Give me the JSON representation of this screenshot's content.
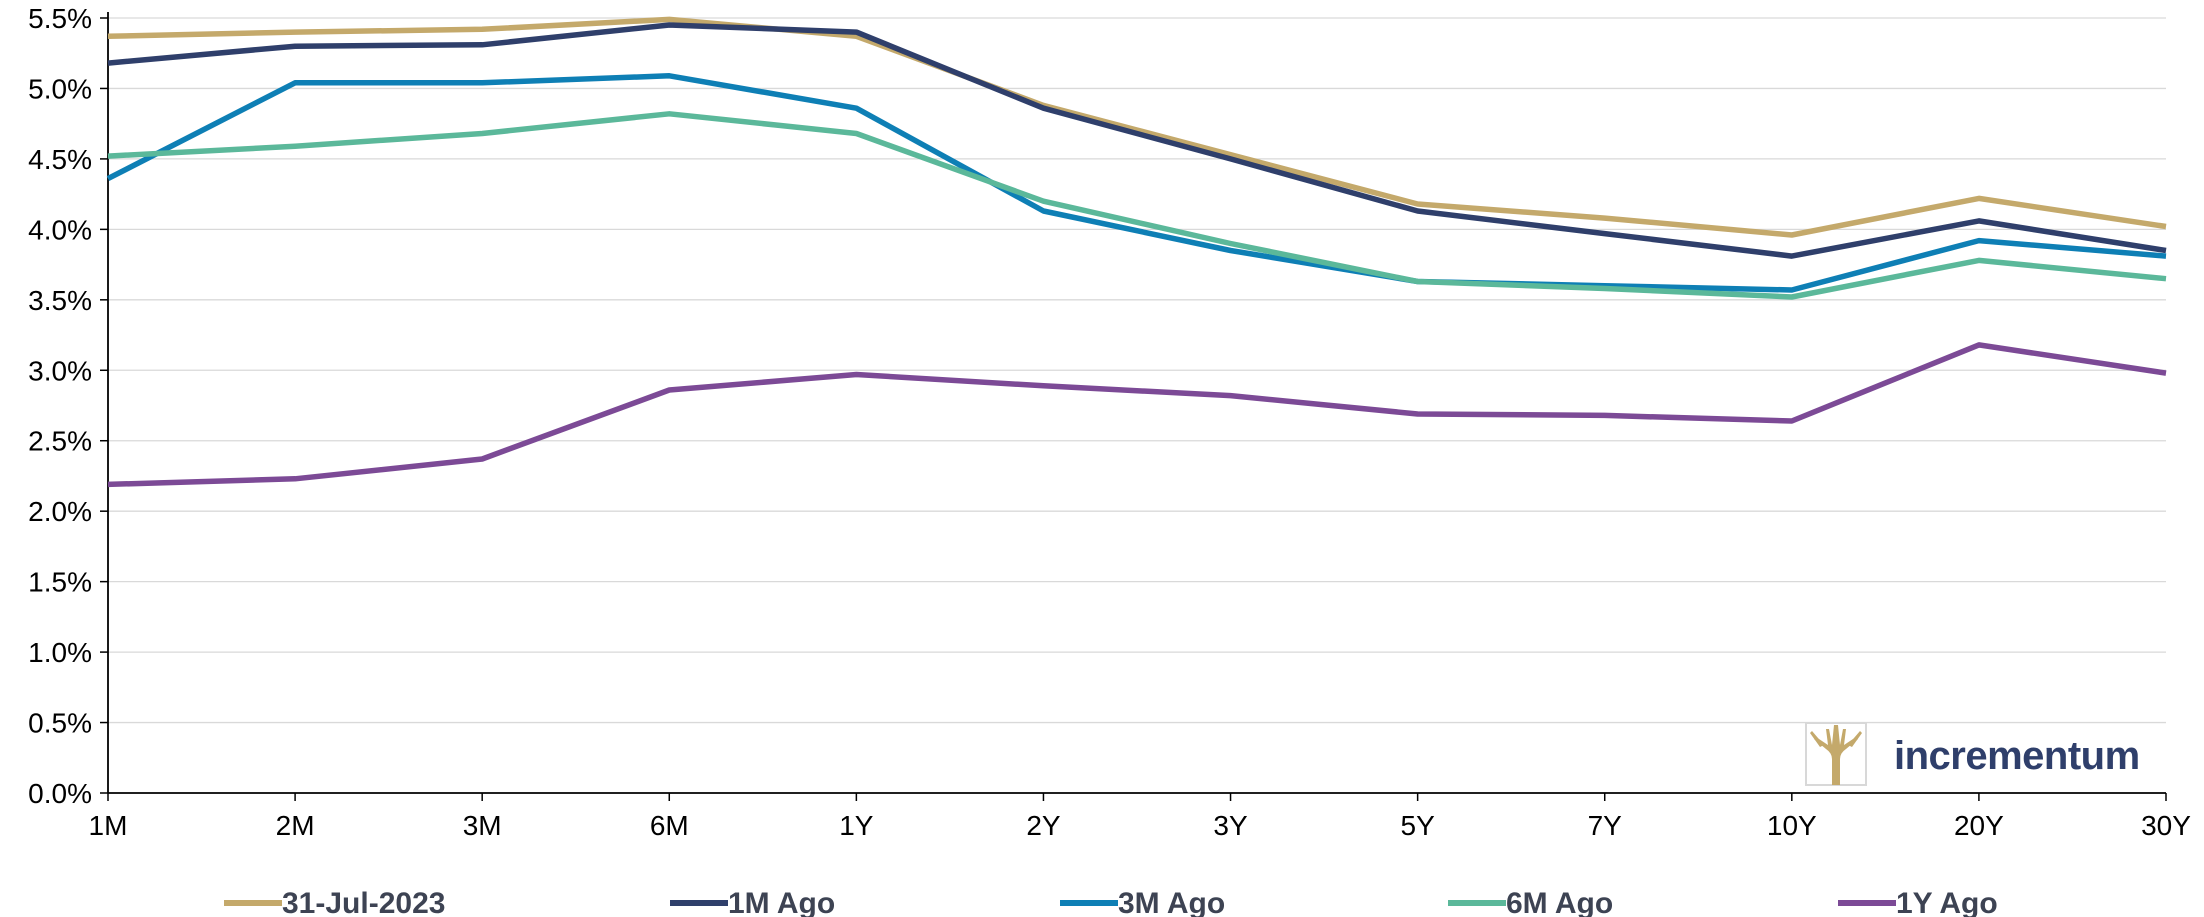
{
  "chart_data": {
    "type": "line",
    "title": "",
    "xlabel": "",
    "ylabel": "",
    "categories": [
      "1M",
      "2M",
      "3M",
      "6M",
      "1Y",
      "2Y",
      "3Y",
      "5Y",
      "7Y",
      "10Y",
      "20Y",
      "30Y"
    ],
    "ylim": [
      0,
      5.5
    ],
    "yticks": [
      "0.0%",
      "0.5%",
      "1.0%",
      "1.5%",
      "2.0%",
      "2.5%",
      "3.0%",
      "3.5%",
      "4.0%",
      "4.5%",
      "5.0%",
      "5.5%"
    ],
    "grid": true,
    "legend_position": "bottom",
    "series": [
      {
        "name": "31-Jul-2023",
        "color": "#c4a96b",
        "values": [
          5.37,
          5.4,
          5.42,
          5.49,
          5.37,
          4.88,
          4.53,
          4.18,
          4.08,
          3.96,
          4.22,
          4.02
        ]
      },
      {
        "name": "1M Ago",
        "color": "#2f3f6b",
        "values": [
          5.18,
          5.3,
          5.31,
          5.45,
          5.4,
          4.86,
          4.5,
          4.13,
          3.97,
          3.81,
          4.06,
          3.85
        ]
      },
      {
        "name": "3M Ago",
        "color": "#0e7fb5",
        "values": [
          4.36,
          5.04,
          5.04,
          5.09,
          4.86,
          4.13,
          3.85,
          3.63,
          3.6,
          3.57,
          3.92,
          3.81
        ]
      },
      {
        "name": "6M Ago",
        "color": "#5bb89a",
        "values": [
          4.52,
          4.59,
          4.68,
          4.82,
          4.68,
          4.2,
          3.9,
          3.63,
          3.58,
          3.52,
          3.78,
          3.65
        ]
      },
      {
        "name": "1Y Ago",
        "color": "#7c4a96",
        "values": [
          2.19,
          2.23,
          2.37,
          2.86,
          2.97,
          2.89,
          2.82,
          2.69,
          2.68,
          2.64,
          3.18,
          2.98
        ]
      }
    ]
  },
  "logo": {
    "text": "incrementum",
    "icon": "tree-logo-icon",
    "icon_color": "#c4a96b",
    "text_color": "#2f3f6b"
  }
}
